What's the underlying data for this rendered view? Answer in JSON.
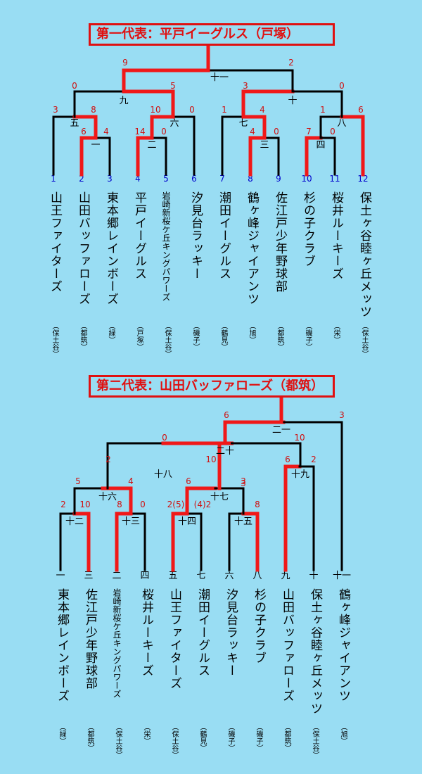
{
  "top": {
    "banner": "第一代表：平戸イーグルス（戸塚）",
    "teams": [
      {
        "no": "1",
        "name": "山王ファイターズ",
        "area": "（保土谷）"
      },
      {
        "no": "2",
        "name": "山田バッファローズ",
        "area": "（都筑）"
      },
      {
        "no": "3",
        "name": "東本郷レインボーズ",
        "area": "（緑）"
      },
      {
        "no": "4",
        "name": "平戸イーグルス",
        "area": "（戸塚）"
      },
      {
        "no": "5",
        "name": "岩崎新桜ケ丘キングパワーズ",
        "area": "（保土谷）"
      },
      {
        "no": "6",
        "name": "汐見台ラッキー",
        "area": "（磯子）"
      },
      {
        "no": "7",
        "name": "潮田イーグルス",
        "area": "（鶴見）"
      },
      {
        "no": "8",
        "name": "鶴ヶ峰ジャイアンツ",
        "area": "（旭）"
      },
      {
        "no": "9",
        "name": "佐江戸少年野球部",
        "area": "（都筑）"
      },
      {
        "no": "10",
        "name": "杉の子クラブ",
        "area": "（磯子）"
      },
      {
        "no": "11",
        "name": "桜井ルーキーズ",
        "area": "（栄）"
      },
      {
        "no": "12",
        "name": "保土ヶ谷睦ヶ丘メッツ",
        "area": "（保土谷）"
      }
    ],
    "games": [
      "一",
      "二",
      "三",
      "四",
      "五",
      "六",
      "七",
      "八",
      "九",
      "十",
      "十一"
    ],
    "scores": [
      "3",
      "8",
      "6",
      "4",
      "10",
      "0",
      "14",
      "0",
      "1",
      "4",
      "4",
      "0",
      "1",
      "6",
      "7",
      "0",
      "0",
      "5",
      "3",
      "0",
      "9",
      "2"
    ]
  },
  "bottom": {
    "banner": "第二代表：山田バッファローズ（都筑）",
    "teams": [
      {
        "no": "一",
        "name": "東本郷レインボーズ",
        "area": "（緑）"
      },
      {
        "no": "三",
        "name": "佐江戸少年野球部",
        "area": "（都筑）"
      },
      {
        "no": "二",
        "name": "岩崎新桜ケ丘キングパワーズ",
        "area": "（保土谷）"
      },
      {
        "no": "四",
        "name": "桜井ルーキーズ",
        "area": "（栄）"
      },
      {
        "no": "五",
        "name": "山王ファイターズ",
        "area": "（保土谷）"
      },
      {
        "no": "七",
        "name": "潮田イーグルス",
        "area": "（鶴見）"
      },
      {
        "no": "六",
        "name": "汐見台ラッキー",
        "area": "（磯子）"
      },
      {
        "no": "八",
        "name": "杉の子クラブ",
        "area": "（磯子）"
      },
      {
        "no": "九",
        "name": "山田バッファローズ",
        "area": "（都筑）"
      },
      {
        "no": "十",
        "name": "保土ヶ谷睦ヶ丘メッツ",
        "area": "（保土谷）"
      },
      {
        "no": "十一",
        "name": "鶴ヶ峰ジャイアンツ",
        "area": "（旭）"
      }
    ],
    "games": [
      "十二",
      "十三",
      "十四",
      "十五",
      "十六",
      "十七",
      "十八",
      "十九",
      "二十",
      "二一"
    ],
    "scores": [
      "2",
      "10",
      "8",
      "0",
      "2(5)",
      "(4)2",
      "3",
      "8",
      "5",
      "4",
      "6",
      "3",
      "2",
      "10",
      "6",
      "2",
      "0",
      "10",
      "6",
      "3"
    ]
  },
  "colors": {
    "win": "#F01818",
    "line": "#000000",
    "num_blue": "#0000CC",
    "score": "#D01010",
    "bg": "#99DDF3"
  }
}
